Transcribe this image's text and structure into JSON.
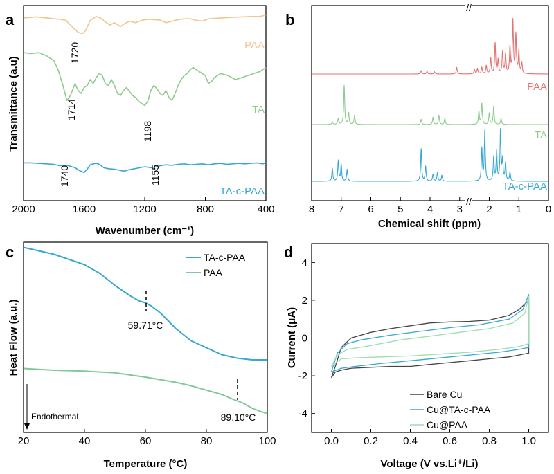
{
  "chart_data": [
    {
      "panel": "a",
      "type": "line",
      "xlabel": "Wavenumber (cm⁻¹)",
      "ylabel": "Transmittance (a.u)",
      "xlim": [
        2000,
        400
      ],
      "x_ticks": [
        2000,
        1600,
        1200,
        800,
        400
      ],
      "series": [
        {
          "name": "PAA",
          "color": "#f2c48d",
          "x": [
            2000,
            1920,
            1840,
            1800,
            1760,
            1720,
            1680,
            1640,
            1610,
            1590,
            1560,
            1520,
            1490,
            1460,
            1430,
            1400,
            1360,
            1330,
            1300,
            1260,
            1220,
            1180,
            1140,
            1100,
            1060,
            1020,
            980,
            940,
            900,
            860,
            820,
            800,
            780,
            740,
            700,
            660,
            620,
            560,
            500,
            440,
            400
          ],
          "y": [
            0.82,
            0.85,
            0.82,
            0.8,
            0.79,
            0.76,
            0.6,
            0.45,
            0.42,
            0.5,
            0.76,
            0.86,
            0.82,
            0.72,
            0.64,
            0.7,
            0.6,
            0.68,
            0.74,
            0.7,
            0.76,
            0.79,
            0.78,
            0.77,
            0.7,
            0.74,
            0.78,
            0.8,
            0.8,
            0.76,
            0.74,
            0.77,
            0.8,
            0.81,
            0.82,
            0.83,
            0.84,
            0.85,
            0.86,
            0.86,
            0.9
          ]
        },
        {
          "name": "TA",
          "color": "#8dcb8e",
          "x": [
            2000,
            1950,
            1900,
            1850,
            1800,
            1770,
            1740,
            1714,
            1690,
            1660,
            1640,
            1620,
            1600,
            1580,
            1560,
            1540,
            1520,
            1500,
            1480,
            1460,
            1440,
            1420,
            1400,
            1380,
            1360,
            1340,
            1320,
            1300,
            1280,
            1260,
            1240,
            1220,
            1200,
            1180,
            1160,
            1140,
            1120,
            1100,
            1080,
            1060,
            1040,
            1020,
            1000,
            980,
            960,
            940,
            920,
            900,
            880,
            860,
            840,
            820,
            800,
            780,
            760,
            740,
            700,
            650,
            600,
            560,
            520,
            480,
            440,
            400
          ],
          "y": [
            0.93,
            0.92,
            0.93,
            0.9,
            0.85,
            0.75,
            0.6,
            0.45,
            0.5,
            0.62,
            0.55,
            0.52,
            0.58,
            0.6,
            0.66,
            0.62,
            0.68,
            0.72,
            0.7,
            0.62,
            0.6,
            0.66,
            0.6,
            0.52,
            0.5,
            0.55,
            0.58,
            0.54,
            0.5,
            0.48,
            0.44,
            0.42,
            0.4,
            0.44,
            0.55,
            0.6,
            0.57,
            0.52,
            0.5,
            0.55,
            0.48,
            0.45,
            0.52,
            0.6,
            0.66,
            0.7,
            0.72,
            0.76,
            0.78,
            0.76,
            0.74,
            0.72,
            0.7,
            0.62,
            0.64,
            0.68,
            0.72,
            0.7,
            0.66,
            0.68,
            0.7,
            0.72,
            0.74,
            0.78
          ]
        },
        {
          "name": "TA-c-PAA",
          "color": "#36a8d2",
          "x": [
            2000,
            1950,
            1900,
            1850,
            1800,
            1760,
            1740,
            1700,
            1660,
            1630,
            1600,
            1580,
            1560,
            1540,
            1520,
            1500,
            1470,
            1440,
            1400,
            1370,
            1340,
            1300,
            1250,
            1200,
            1155,
            1100,
            1060,
            1020,
            980,
            940,
            900,
            860,
            820,
            780,
            740,
            700,
            660,
            620,
            580,
            540,
            500,
            460,
            420,
            400
          ],
          "y": [
            0.58,
            0.58,
            0.57,
            0.56,
            0.55,
            0.52,
            0.53,
            0.52,
            0.48,
            0.42,
            0.38,
            0.45,
            0.54,
            0.56,
            0.57,
            0.55,
            0.48,
            0.46,
            0.45,
            0.43,
            0.41,
            0.44,
            0.47,
            0.5,
            0.48,
            0.52,
            0.54,
            0.53,
            0.55,
            0.56,
            0.54,
            0.55,
            0.56,
            0.54,
            0.56,
            0.57,
            0.55,
            0.56,
            0.57,
            0.56,
            0.57,
            0.58,
            0.56,
            0.58
          ]
        }
      ],
      "annotations": [
        "1720",
        "1714",
        "1198",
        "1740",
        "1155"
      ]
    },
    {
      "panel": "b",
      "type": "line",
      "xlabel": "Chemical shift (ppm)",
      "xlim": [
        8,
        0
      ],
      "x_ticks": [
        8,
        7,
        6,
        5,
        4,
        3,
        2,
        1,
        0
      ],
      "axis_break": "//",
      "series": [
        {
          "name": "PAA",
          "color": "#e57373",
          "peaks": [
            [
              4.3,
              0.06
            ],
            [
              4.1,
              0.05
            ],
            [
              3.85,
              0.04
            ],
            [
              3.1,
              0.12
            ],
            [
              2.5,
              0.08
            ],
            [
              2.4,
              0.1
            ],
            [
              2.25,
              0.12
            ],
            [
              2.1,
              0.15
            ],
            [
              1.95,
              0.28
            ],
            [
              1.8,
              0.55
            ],
            [
              1.7,
              0.25
            ],
            [
              1.55,
              0.4
            ],
            [
              1.45,
              0.35
            ],
            [
              1.3,
              0.48
            ],
            [
              1.2,
              0.95
            ],
            [
              1.1,
              0.7
            ],
            [
              1.0,
              0.4
            ],
            [
              0.9,
              0.2
            ]
          ]
        },
        {
          "name": "TA",
          "color": "#8dcb8e",
          "peaks": [
            [
              7.3,
              0.05
            ],
            [
              7.1,
              0.12
            ],
            [
              6.9,
              0.75
            ],
            [
              6.75,
              0.22
            ],
            [
              6.55,
              0.18
            ],
            [
              4.3,
              0.1
            ],
            [
              3.9,
              0.14
            ],
            [
              3.7,
              0.18
            ],
            [
              3.5,
              0.12
            ],
            [
              2.35,
              0.25
            ],
            [
              2.25,
              0.4
            ],
            [
              2.0,
              0.22
            ],
            [
              1.85,
              0.35
            ],
            [
              1.6,
              0.12
            ]
          ]
        },
        {
          "name": "TA-c-PAA",
          "color": "#36a8d2",
          "peaks": [
            [
              7.3,
              0.22
            ],
            [
              7.1,
              0.35
            ],
            [
              7.0,
              0.28
            ],
            [
              6.8,
              0.2
            ],
            [
              4.3,
              0.55
            ],
            [
              4.15,
              0.25
            ],
            [
              3.9,
              0.12
            ],
            [
              3.75,
              0.15
            ],
            [
              3.6,
              0.1
            ],
            [
              2.25,
              0.55
            ],
            [
              2.15,
              0.85
            ],
            [
              1.85,
              0.4
            ],
            [
              1.75,
              0.5
            ],
            [
              1.62,
              0.85
            ],
            [
              1.55,
              0.35
            ],
            [
              1.45,
              0.3
            ],
            [
              1.3,
              0.15
            ]
          ]
        }
      ]
    },
    {
      "panel": "c",
      "type": "line",
      "xlabel": "Temperature (°C)",
      "ylabel": "Heat Flow (a.u.)",
      "xlim": [
        20,
        100
      ],
      "x_ticks": [
        20,
        40,
        60,
        80,
        100
      ],
      "arrow_label": "Endothermal",
      "series": [
        {
          "name": "TA-c-PAA",
          "color": "#36a8d2",
          "x": [
            20,
            25,
            30,
            35,
            40,
            45,
            50,
            55,
            58,
            60,
            62,
            65,
            70,
            75,
            80,
            85,
            90,
            95,
            100
          ],
          "y": [
            0.95,
            0.93,
            0.91,
            0.88,
            0.85,
            0.8,
            0.73,
            0.67,
            0.64,
            0.63,
            0.61,
            0.57,
            0.48,
            0.41,
            0.37,
            0.33,
            0.31,
            0.3,
            0.3
          ]
        },
        {
          "name": "PAA",
          "color": "#7fc99a",
          "x": [
            20,
            30,
            40,
            50,
            60,
            70,
            75,
            80,
            85,
            89,
            92,
            95,
            98,
            100
          ],
          "y": [
            0.25,
            0.24,
            0.235,
            0.225,
            0.2,
            0.17,
            0.15,
            0.125,
            0.1,
            0.07,
            0.05,
            0.02,
            0.0,
            -0.01
          ]
        }
      ],
      "annotations": [
        "59.71°C",
        "89.10°C"
      ]
    },
    {
      "panel": "d",
      "type": "line",
      "xlabel": "Voltage (V vs.Li⁺/Li)",
      "ylabel": "Current (μA)",
      "xlim": [
        -0.1,
        1.1
      ],
      "ylim": [
        -5,
        5
      ],
      "x_ticks": [
        0.0,
        0.2,
        0.4,
        0.6,
        0.8,
        1.0
      ],
      "y_ticks": [
        4,
        2,
        0,
        -2,
        -4
      ],
      "series": [
        {
          "name": "Bare Cu",
          "color": "#444444",
          "x": [
            0.0,
            0.02,
            0.05,
            0.1,
            0.2,
            0.3,
            0.4,
            0.5,
            0.6,
            0.7,
            0.8,
            0.9,
            0.95,
            1.0,
            1.0,
            0.95,
            0.9,
            0.8,
            0.7,
            0.6,
            0.5,
            0.4,
            0.3,
            0.2,
            0.1,
            0.05,
            0.02,
            0.0
          ],
          "y": [
            -2.1,
            -1.5,
            -0.5,
            0.0,
            0.3,
            0.5,
            0.65,
            0.8,
            0.85,
            0.88,
            0.95,
            1.2,
            1.5,
            2.0,
            -0.8,
            -0.9,
            -1.0,
            -1.1,
            -1.2,
            -1.3,
            -1.4,
            -1.5,
            -1.5,
            -1.55,
            -1.6,
            -1.7,
            -1.8,
            -2.1
          ]
        },
        {
          "name": "Cu@TA-c-PAA",
          "color": "#36a8d2",
          "x": [
            0.0,
            0.03,
            0.08,
            0.15,
            0.3,
            0.45,
            0.6,
            0.75,
            0.9,
            0.97,
            1.0,
            1.0,
            0.95,
            0.85,
            0.7,
            0.55,
            0.4,
            0.25,
            0.12,
            0.05,
            0.0
          ],
          "y": [
            -1.8,
            -0.8,
            -0.3,
            -0.1,
            0.15,
            0.35,
            0.55,
            0.7,
            1.0,
            1.5,
            2.3,
            -0.5,
            -0.6,
            -0.75,
            -0.9,
            -1.05,
            -1.2,
            -1.35,
            -1.5,
            -1.6,
            -1.8
          ]
        },
        {
          "name": "Cu@PAA",
          "color": "#9fdcb0",
          "x": [
            0.0,
            0.03,
            0.08,
            0.2,
            0.35,
            0.5,
            0.65,
            0.8,
            0.92,
            0.98,
            1.0,
            1.0,
            0.95,
            0.85,
            0.7,
            0.55,
            0.4,
            0.25,
            0.12,
            0.05,
            0.0
          ],
          "y": [
            -1.5,
            -0.9,
            -0.6,
            -0.4,
            -0.1,
            0.1,
            0.3,
            0.5,
            0.8,
            1.3,
            2.2,
            -0.3,
            -0.45,
            -0.6,
            -0.75,
            -0.85,
            -0.95,
            -1.0,
            -1.05,
            -1.1,
            -1.5
          ]
        }
      ]
    }
  ]
}
